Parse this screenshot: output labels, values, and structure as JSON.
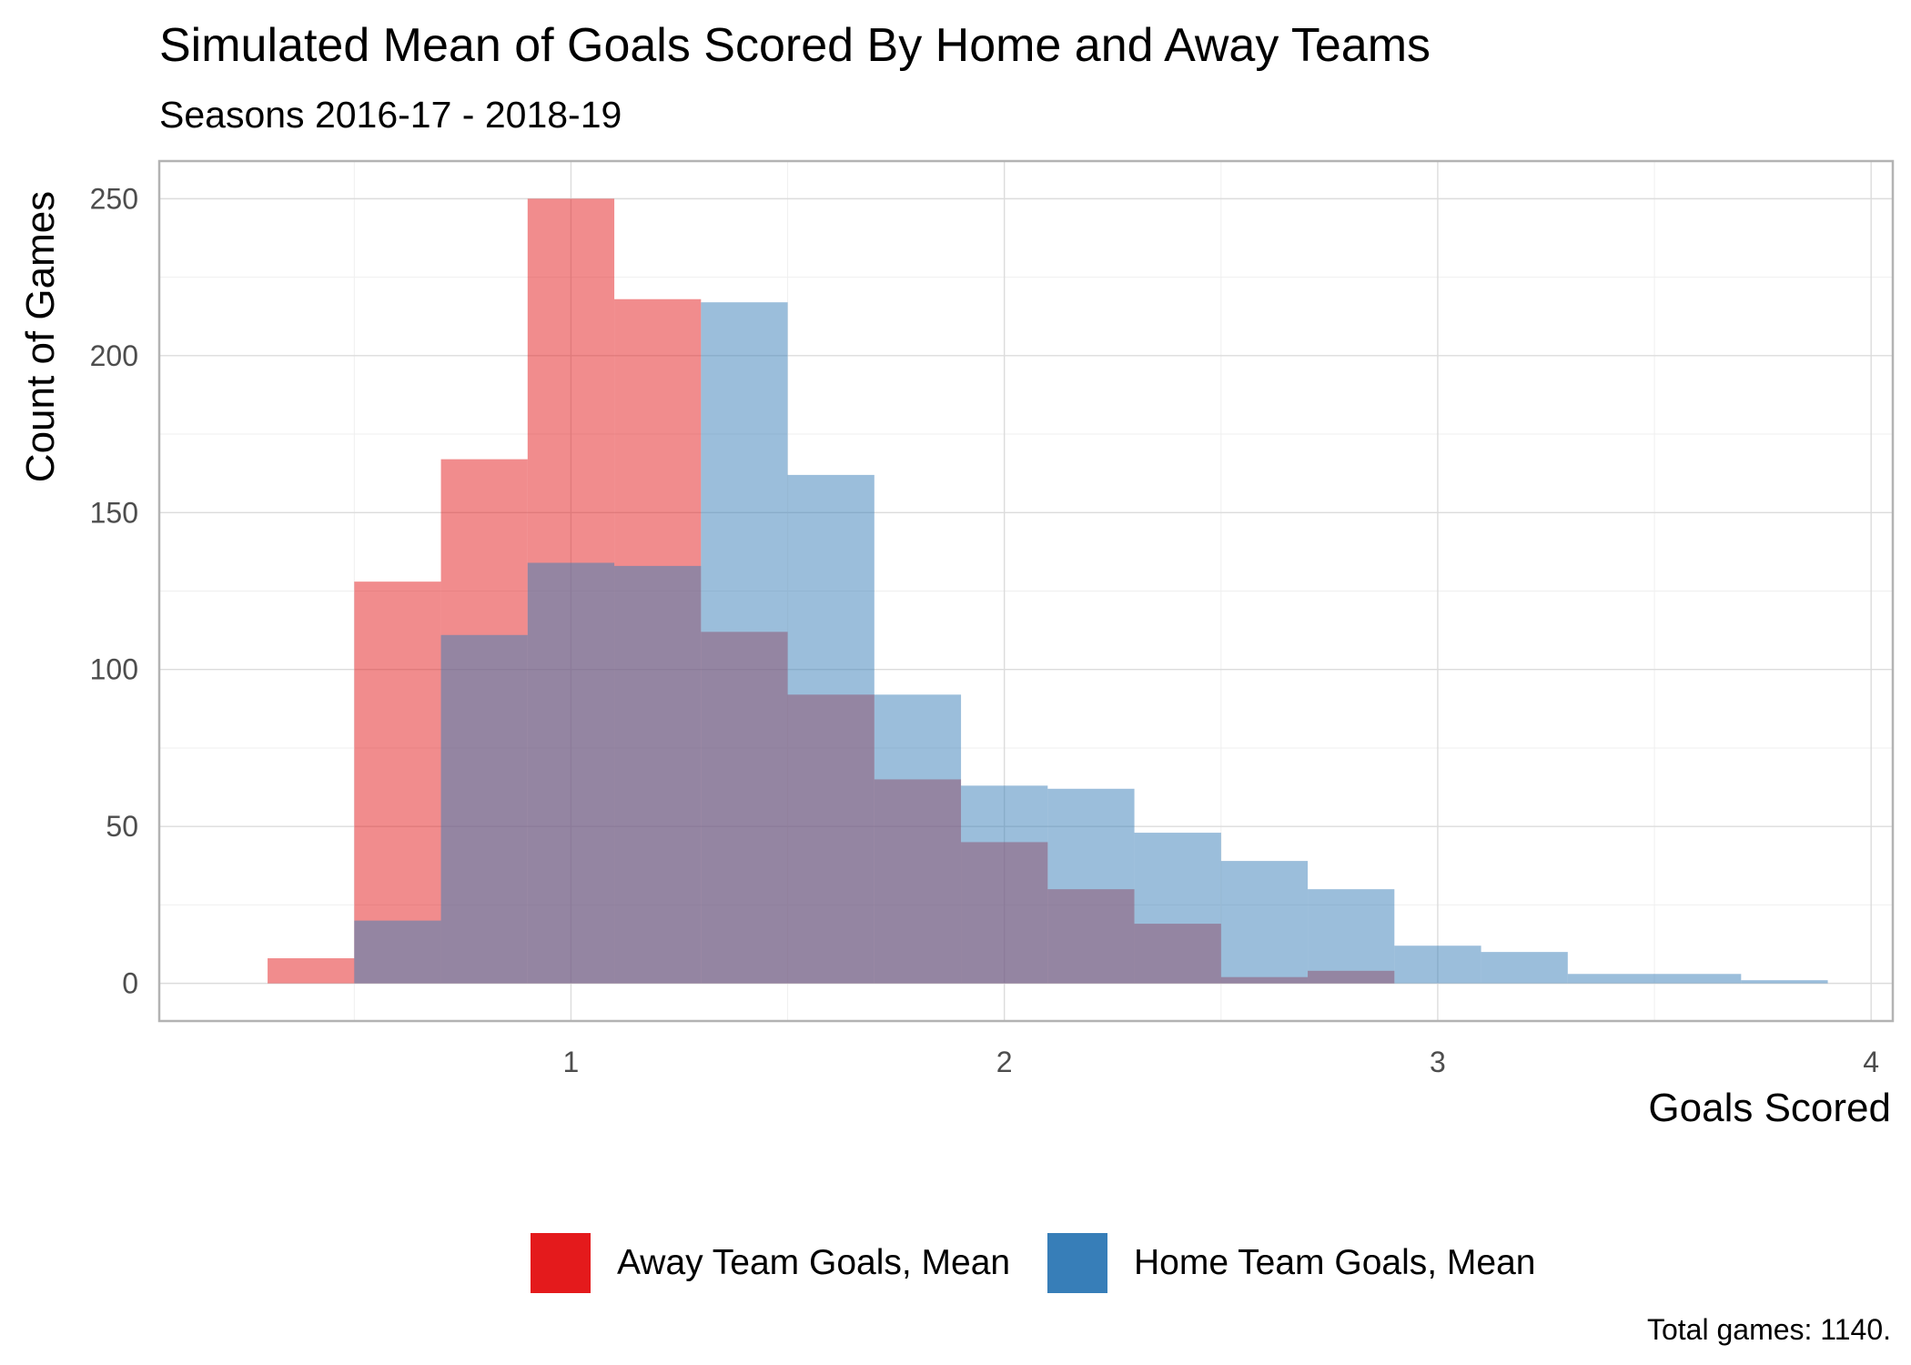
{
  "chart_data": {
    "type": "histogram",
    "title": "Simulated Mean of Goals Scored By Home and Away Teams",
    "subtitle": "Seasons 2016-17 - 2018-19",
    "xlabel": "Goals Scored",
    "ylabel": "Count of Games",
    "caption": "Total games: 1140.",
    "xlim": [
      0.05,
      4.05
    ],
    "ylim": [
      -12,
      262
    ],
    "x_ticks": [
      "1",
      "2",
      "3",
      "4"
    ],
    "y_ticks": [
      "0",
      "50",
      "100",
      "150",
      "200",
      "250"
    ],
    "bin_width": 0.2,
    "bin_starts": [
      0.3,
      0.5,
      0.7,
      0.9,
      1.1,
      1.3,
      1.5,
      1.7,
      1.9,
      2.1,
      2.3,
      2.5,
      2.7,
      2.9,
      3.1,
      3.3,
      3.5,
      3.7
    ],
    "grid": true,
    "legend_position": "bottom",
    "series": [
      {
        "name": "Away Team Goals, Mean",
        "color": "#E41A1C",
        "values": [
          8,
          128,
          167,
          250,
          218,
          112,
          92,
          65,
          45,
          30,
          19,
          2,
          4,
          0,
          0,
          0,
          0,
          0
        ]
      },
      {
        "name": "Home Team Goals, Mean",
        "color": "#377EB8",
        "values": [
          0,
          20,
          111,
          134,
          133,
          217,
          162,
          92,
          63,
          62,
          48,
          39,
          30,
          12,
          10,
          3,
          3,
          1
        ]
      }
    ]
  }
}
